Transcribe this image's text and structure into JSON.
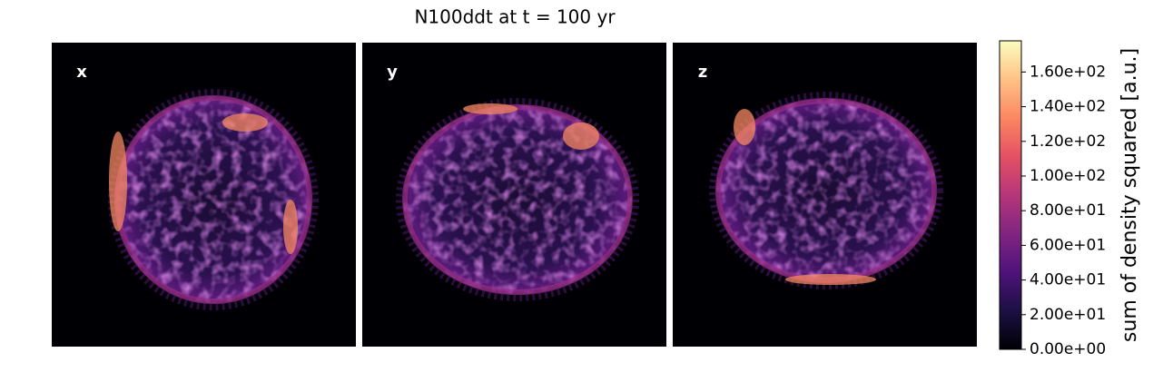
{
  "chart_data": {
    "type": "image",
    "title": "N100ddt at t = 100 yr",
    "panels": [
      "x",
      "y",
      "z"
    ],
    "colormap": "magma",
    "colorbar": {
      "label": "sum of density squared [a.u.]",
      "lim": [
        0,
        178
      ],
      "ticks": [
        {
          "value": 0,
          "label": "0.00e+00"
        },
        {
          "value": 20,
          "label": "2.00e+01"
        },
        {
          "value": 40,
          "label": "4.00e+01"
        },
        {
          "value": 60,
          "label": "6.00e+01"
        },
        {
          "value": 80,
          "label": "8.00e+01"
        },
        {
          "value": 100,
          "label": "1.00e+02"
        },
        {
          "value": 120,
          "label": "1.20e+02"
        },
        {
          "value": 140,
          "label": "1.40e+02"
        },
        {
          "value": 160,
          "label": "1.60e+02"
        }
      ]
    }
  }
}
